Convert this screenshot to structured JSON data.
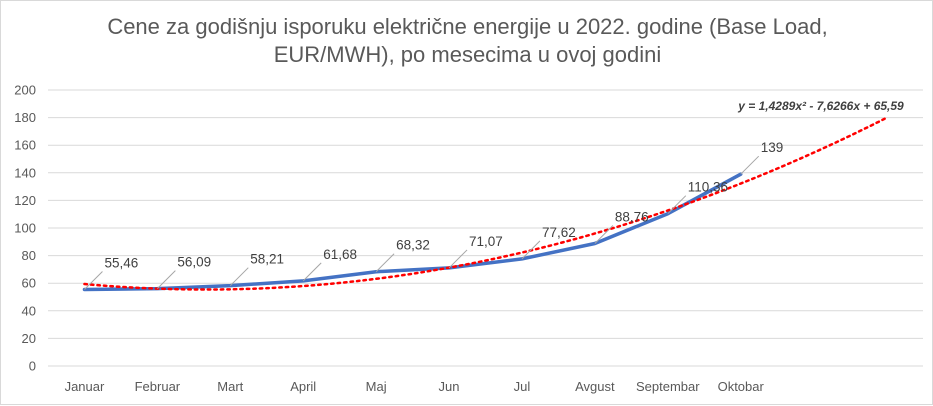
{
  "chart_data": {
    "type": "line",
    "title_line1": "Cene za godišnju isporuku električne energije u 2022. godine (Base Load,",
    "title_line2": "EUR/MWH), po mesecima u ovoj godini",
    "categories": [
      "Januar",
      "Februar",
      "Mart",
      "April",
      "Maj",
      "Jun",
      "Jul",
      "Avgust",
      "Septembar",
      "Oktobar"
    ],
    "series": [
      {
        "values": [
          55.46,
          56.09,
          58.21,
          61.68,
          68.32,
          71.07,
          77.62,
          88.76,
          110.36,
          139
        ],
        "labels": [
          "55,46",
          "56,09",
          "58,21",
          "61,68",
          "68,32",
          "71,07",
          "77,62",
          "88,76",
          "110,36",
          "139"
        ],
        "color": "#4472c4"
      }
    ],
    "trendline": {
      "type": "polynomial",
      "a": 1.4289,
      "b": -7.6266,
      "c": 65.59,
      "equation": "y = 1,4289x² - 7,6266x + 65,59",
      "color": "#ff0000",
      "style": "dotted"
    },
    "ylim": [
      0,
      200
    ],
    "yticks": [
      "0",
      "20",
      "40",
      "60",
      "80",
      "100",
      "120",
      "140",
      "160",
      "180",
      "200"
    ],
    "grid": true,
    "legend": "none"
  }
}
